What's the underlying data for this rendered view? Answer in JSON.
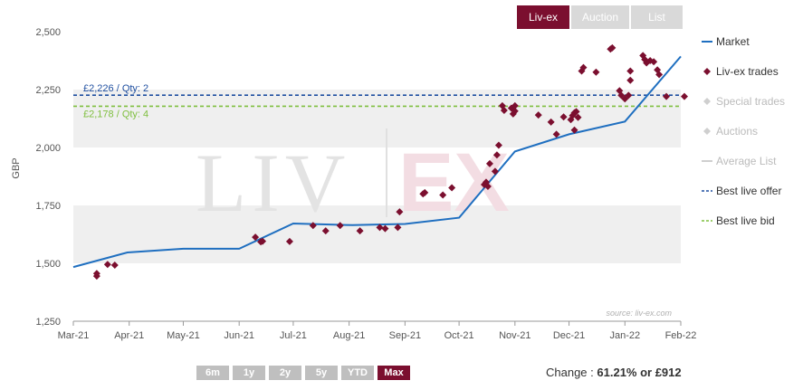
{
  "tabs": [
    {
      "label": "Liv-ex",
      "active": true
    },
    {
      "label": "Auction",
      "active": false
    },
    {
      "label": "List",
      "active": false
    }
  ],
  "ranges": [
    {
      "label": "6m",
      "active": false
    },
    {
      "label": "1y",
      "active": false
    },
    {
      "label": "2y",
      "active": false
    },
    {
      "label": "5y",
      "active": false
    },
    {
      "label": "YTD",
      "active": false
    },
    {
      "label": "Max",
      "active": true
    }
  ],
  "change": {
    "label": "Change :",
    "value": "61.21% or £912"
  },
  "source": "source: liv-ex.com",
  "watermark": {
    "left": "LIV",
    "right": "EX"
  },
  "colors": {
    "market": "#1f6fc0",
    "trades": "#7b0f2f",
    "offer": "#1f4fa0",
    "bid": "#7fbf3f",
    "band": "#efefef",
    "muted": "#cfcfcf",
    "accent": "#7b0f2f"
  },
  "chart_data": {
    "type": "line",
    "ylabel": "GBP",
    "xlabel": "",
    "ylim": [
      1250,
      2500
    ],
    "yticks": [
      1250,
      1500,
      1750,
      2000,
      2250,
      2500
    ],
    "ytick_labels": [
      "1,250",
      "1,500",
      "1,750",
      "2,000",
      "2,250",
      "2,500"
    ],
    "xlim": [
      "2021-03-01",
      "2022-02-01"
    ],
    "xticks": [
      "2021-03-01",
      "2021-04-01",
      "2021-05-01",
      "2021-06-01",
      "2021-07-01",
      "2021-08-01",
      "2021-09-01",
      "2021-10-01",
      "2021-11-01",
      "2021-12-01",
      "2022-01-01",
      "2022-02-01"
    ],
    "xtick_labels": [
      "Mar-21",
      "Apr-21",
      "May-21",
      "Jun-21",
      "Jul-21",
      "Aug-21",
      "Sep-21",
      "Oct-21",
      "Nov-21",
      "Dec-21",
      "Jan-22",
      "Feb-22"
    ],
    "grid": "alternating horizontal bands",
    "legend_position": "right",
    "legend": [
      {
        "label": "Market",
        "type": "line",
        "enabled": true
      },
      {
        "label": "Liv-ex trades",
        "type": "diamond",
        "enabled": true
      },
      {
        "label": "Special trades",
        "type": "diamond",
        "enabled": false
      },
      {
        "label": "Auctions",
        "type": "diamond",
        "enabled": false
      },
      {
        "label": "Average List",
        "type": "line",
        "enabled": false
      },
      {
        "label": "Best live offer",
        "type": "dashed",
        "enabled": true
      },
      {
        "label": "Best live bid",
        "type": "dashed",
        "enabled": true
      }
    ],
    "market": [
      [
        "2021-03-01",
        1484
      ],
      [
        "2021-03-31",
        1547
      ],
      [
        "2021-05-01",
        1563
      ],
      [
        "2021-06-01",
        1563
      ],
      [
        "2021-07-01",
        1672
      ],
      [
        "2021-08-03",
        1665
      ],
      [
        "2021-09-01",
        1670
      ],
      [
        "2021-10-01",
        1697
      ],
      [
        "2021-11-01",
        1983
      ],
      [
        "2021-12-01",
        2057
      ],
      [
        "2022-01-01",
        2112
      ],
      [
        "2022-02-01",
        2393
      ]
    ],
    "trades": [
      [
        "2021-03-14",
        1456
      ],
      [
        "2021-03-14",
        1445
      ],
      [
        "2021-03-20",
        1495
      ],
      [
        "2021-03-24",
        1492
      ],
      [
        "2021-06-10",
        1613
      ],
      [
        "2021-06-13",
        1593
      ],
      [
        "2021-06-14",
        1595
      ],
      [
        "2021-06-29",
        1594
      ],
      [
        "2021-07-12",
        1663
      ],
      [
        "2021-07-19",
        1640
      ],
      [
        "2021-07-27",
        1663
      ],
      [
        "2021-08-07",
        1640
      ],
      [
        "2021-08-18",
        1655
      ],
      [
        "2021-08-21",
        1650
      ],
      [
        "2021-08-28",
        1655
      ],
      [
        "2021-08-29",
        1722
      ],
      [
        "2021-09-11",
        1800
      ],
      [
        "2021-09-12",
        1805
      ],
      [
        "2021-09-22",
        1795
      ],
      [
        "2021-09-27",
        1826
      ],
      [
        "2021-10-15",
        1840
      ],
      [
        "2021-10-16",
        1850
      ],
      [
        "2021-10-17",
        1832
      ],
      [
        "2021-10-18",
        1930
      ],
      [
        "2021-10-21",
        1897
      ],
      [
        "2021-10-22",
        1968
      ],
      [
        "2021-10-23",
        2010
      ],
      [
        "2021-10-25",
        2180
      ],
      [
        "2021-10-26",
        2160
      ],
      [
        "2021-10-30",
        2170
      ],
      [
        "2021-10-31",
        2145
      ],
      [
        "2021-11-01",
        2157
      ],
      [
        "2021-11-01",
        2180
      ],
      [
        "2021-11-14",
        2140
      ],
      [
        "2021-11-21",
        2110
      ],
      [
        "2021-11-24",
        2057
      ],
      [
        "2021-11-28",
        2132
      ],
      [
        "2021-12-02",
        2120
      ],
      [
        "2021-12-03",
        2138
      ],
      [
        "2021-12-04",
        2150
      ],
      [
        "2021-12-04",
        2075
      ],
      [
        "2021-12-05",
        2155
      ],
      [
        "2021-12-06",
        2130
      ],
      [
        "2021-12-08",
        2330
      ],
      [
        "2021-12-09",
        2345
      ],
      [
        "2021-12-16",
        2325
      ],
      [
        "2021-12-24",
        2425
      ],
      [
        "2021-12-25",
        2430
      ],
      [
        "2021-12-29",
        2245
      ],
      [
        "2021-12-30",
        2225
      ],
      [
        "2022-01-01",
        2210
      ],
      [
        "2022-01-03",
        2225
      ],
      [
        "2022-01-04",
        2330
      ],
      [
        "2022-01-04",
        2290
      ],
      [
        "2022-01-11",
        2397
      ],
      [
        "2022-01-12",
        2380
      ],
      [
        "2022-01-13",
        2365
      ],
      [
        "2022-01-15",
        2375
      ],
      [
        "2022-01-17",
        2370
      ],
      [
        "2022-01-19",
        2335
      ],
      [
        "2022-01-20",
        2315
      ],
      [
        "2022-01-24",
        2220
      ],
      [
        "2022-02-03",
        2220
      ]
    ],
    "best_offer": {
      "value": 2226,
      "label": "£2,226 / Qty: 2"
    },
    "best_bid": {
      "value": 2178,
      "label": "£2,178 / Qty: 4"
    }
  }
}
